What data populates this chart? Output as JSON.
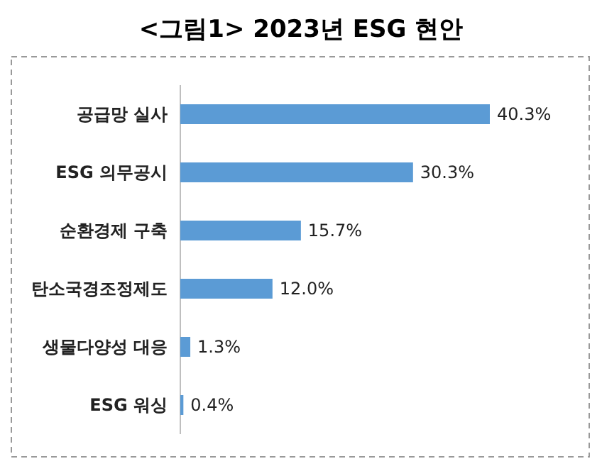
{
  "chart_data": {
    "type": "bar",
    "orientation": "horizontal",
    "title": "<그림1> 2023년 ESG 현안",
    "categories": [
      "공급망 실사",
      "ESG 의무공시",
      "순환경제 구축",
      "탄소국경조정제도",
      "생물다양성 대응",
      "ESG 워싱"
    ],
    "values": [
      40.3,
      30.3,
      15.7,
      12.0,
      1.3,
      0.4
    ],
    "value_labels": [
      "40.3%",
      "30.3%",
      "15.7%",
      "12.0%",
      "1.3%",
      "0.4%"
    ],
    "color": "#5b9bd5"
  }
}
